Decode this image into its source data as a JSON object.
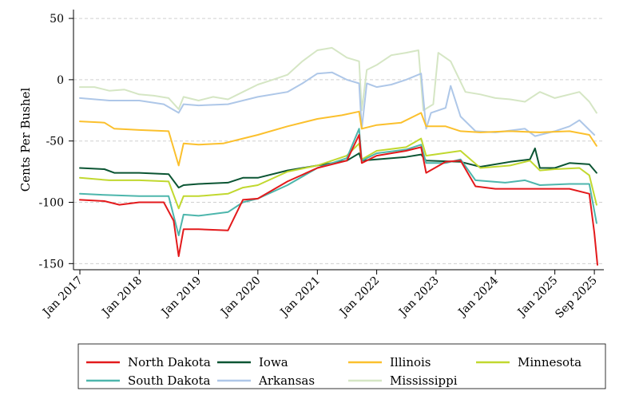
{
  "chart_data": {
    "type": "line",
    "title": "",
    "xlabel": "",
    "ylabel": "Cents Per Bushel",
    "ylim": [
      -155,
      52
    ],
    "xlim": [
      "2017-01-01",
      "2025-09-30"
    ],
    "yticks": [
      50,
      0,
      -50,
      -100,
      -150
    ],
    "ytick_labels": [
      "50",
      "0",
      "-50",
      "-100",
      "-150"
    ],
    "xticks": [
      "2017-01-01",
      "2018-01-01",
      "2019-01-01",
      "2020-01-01",
      "2021-01-01",
      "2022-01-01",
      "2023-01-01",
      "2024-01-01",
      "2025-01-01",
      "2025-09-01"
    ],
    "xtick_labels": [
      "Jan 2017",
      "Jan 2018",
      "Jan 2019",
      "Jan 2020",
      "Jan 2021",
      "Jan 2022",
      "Jan 2023",
      "Jan 2024",
      "Jan 2025",
      "Sep 2025"
    ],
    "grid": "horizontal dashed",
    "legend_position": "bottom",
    "series": [
      {
        "name": "Mississippi",
        "color": "#d5e6c4",
        "points": [
          [
            "2017-01-01",
            -6
          ],
          [
            "2017-04-01",
            -6
          ],
          [
            "2017-07-01",
            -9
          ],
          [
            "2017-10-01",
            -8
          ],
          [
            "2018-01-01",
            -12
          ],
          [
            "2018-04-01",
            -13
          ],
          [
            "2018-07-01",
            -15
          ],
          [
            "2018-09-01",
            -24
          ],
          [
            "2018-10-01",
            -14
          ],
          [
            "2019-01-01",
            -17
          ],
          [
            "2019-04-01",
            -14
          ],
          [
            "2019-07-01",
            -16
          ],
          [
            "2019-10-01",
            -10
          ],
          [
            "2020-01-01",
            -4
          ],
          [
            "2020-04-01",
            0
          ],
          [
            "2020-07-01",
            4
          ],
          [
            "2020-10-01",
            15
          ],
          [
            "2021-01-01",
            24
          ],
          [
            "2021-04-01",
            26
          ],
          [
            "2021-07-01",
            18
          ],
          [
            "2021-09-15",
            15
          ],
          [
            "2021-10-01",
            -25
          ],
          [
            "2021-11-01",
            8
          ],
          [
            "2022-01-01",
            12
          ],
          [
            "2022-04-01",
            20
          ],
          [
            "2022-07-01",
            22
          ],
          [
            "2022-09-15",
            24
          ],
          [
            "2022-10-15",
            -25
          ],
          [
            "2022-12-15",
            -20
          ],
          [
            "2023-01-15",
            22
          ],
          [
            "2023-04-01",
            15
          ],
          [
            "2023-07-01",
            -10
          ],
          [
            "2023-10-01",
            -12
          ],
          [
            "2024-01-01",
            -15
          ],
          [
            "2024-04-01",
            -16
          ],
          [
            "2024-07-01",
            -18
          ],
          [
            "2024-10-01",
            -10
          ],
          [
            "2025-01-01",
            -15
          ],
          [
            "2025-04-01",
            -12
          ],
          [
            "2025-06-01",
            -10
          ],
          [
            "2025-08-01",
            -18
          ],
          [
            "2025-09-15",
            -27
          ]
        ]
      },
      {
        "name": "Arkansas",
        "color": "#aec7e8",
        "points": [
          [
            "2017-01-01",
            -15
          ],
          [
            "2017-07-01",
            -17
          ],
          [
            "2018-01-01",
            -17
          ],
          [
            "2018-06-01",
            -20
          ],
          [
            "2018-09-01",
            -27
          ],
          [
            "2018-10-01",
            -20
          ],
          [
            "2019-01-01",
            -21
          ],
          [
            "2019-07-01",
            -20
          ],
          [
            "2020-01-01",
            -14
          ],
          [
            "2020-07-01",
            -10
          ],
          [
            "2020-10-01",
            -3
          ],
          [
            "2021-01-01",
            5
          ],
          [
            "2021-04-01",
            6
          ],
          [
            "2021-07-01",
            0
          ],
          [
            "2021-09-15",
            -3
          ],
          [
            "2021-10-01",
            -40
          ],
          [
            "2021-11-01",
            -3
          ],
          [
            "2022-01-01",
            -6
          ],
          [
            "2022-04-01",
            -4
          ],
          [
            "2022-07-01",
            0
          ],
          [
            "2022-10-01",
            5
          ],
          [
            "2022-11-01",
            -40
          ],
          [
            "2022-12-01",
            -27
          ],
          [
            "2023-03-01",
            -23
          ],
          [
            "2023-04-01",
            -5
          ],
          [
            "2023-06-01",
            -30
          ],
          [
            "2023-09-01",
            -42
          ],
          [
            "2024-01-01",
            -43
          ],
          [
            "2024-07-01",
            -40
          ],
          [
            "2024-09-01",
            -46
          ],
          [
            "2025-01-01",
            -42
          ],
          [
            "2025-04-01",
            -38
          ],
          [
            "2025-06-01",
            -33
          ],
          [
            "2025-09-01",
            -45
          ]
        ]
      },
      {
        "name": "Illinois",
        "color": "#fbc02d",
        "points": [
          [
            "2017-01-01",
            -34
          ],
          [
            "2017-06-01",
            -35
          ],
          [
            "2017-08-01",
            -40
          ],
          [
            "2018-01-01",
            -41
          ],
          [
            "2018-07-01",
            -42
          ],
          [
            "2018-09-01",
            -70
          ],
          [
            "2018-10-01",
            -52
          ],
          [
            "2019-01-01",
            -53
          ],
          [
            "2019-06-01",
            -52
          ],
          [
            "2019-10-01",
            -48
          ],
          [
            "2020-01-01",
            -45
          ],
          [
            "2020-07-01",
            -38
          ],
          [
            "2021-01-01",
            -32
          ],
          [
            "2021-06-01",
            -29
          ],
          [
            "2021-09-15",
            -26
          ],
          [
            "2021-10-01",
            -40
          ],
          [
            "2022-01-01",
            -37
          ],
          [
            "2022-06-01",
            -35
          ],
          [
            "2022-10-01",
            -27
          ],
          [
            "2022-11-01",
            -38
          ],
          [
            "2023-03-01",
            -38
          ],
          [
            "2023-06-01",
            -42
          ],
          [
            "2023-10-01",
            -43
          ],
          [
            "2024-04-01",
            -42
          ],
          [
            "2024-10-01",
            -43
          ],
          [
            "2025-04-01",
            -42
          ],
          [
            "2025-08-01",
            -45
          ],
          [
            "2025-09-15",
            -54
          ]
        ]
      },
      {
        "name": "Iowa",
        "color": "#0b5533",
        "points": [
          [
            "2017-01-01",
            -72
          ],
          [
            "2017-06-01",
            -73
          ],
          [
            "2017-08-01",
            -76
          ],
          [
            "2018-01-01",
            -76
          ],
          [
            "2018-07-01",
            -77
          ],
          [
            "2018-09-01",
            -88
          ],
          [
            "2018-10-01",
            -86
          ],
          [
            "2019-01-01",
            -85
          ],
          [
            "2019-07-01",
            -84
          ],
          [
            "2019-10-01",
            -80
          ],
          [
            "2020-01-01",
            -80
          ],
          [
            "2020-07-01",
            -74
          ],
          [
            "2021-01-01",
            -70
          ],
          [
            "2021-07-01",
            -66
          ],
          [
            "2021-09-15",
            -60
          ],
          [
            "2021-10-01",
            -66
          ],
          [
            "2022-01-01",
            -65
          ],
          [
            "2022-07-01",
            -63
          ],
          [
            "2022-10-01",
            -61
          ],
          [
            "2022-11-01",
            -66
          ],
          [
            "2023-06-01",
            -67
          ],
          [
            "2023-10-01",
            -71
          ],
          [
            "2024-04-01",
            -67
          ],
          [
            "2024-08-01",
            -65
          ],
          [
            "2024-09-01",
            -56
          ],
          [
            "2024-10-01",
            -72
          ],
          [
            "2025-01-01",
            -72
          ],
          [
            "2025-04-01",
            -68
          ],
          [
            "2025-08-01",
            -69
          ],
          [
            "2025-09-15",
            -76
          ]
        ]
      },
      {
        "name": "Minnesota",
        "color": "#c1d82f",
        "points": [
          [
            "2017-01-01",
            -80
          ],
          [
            "2017-07-01",
            -82
          ],
          [
            "2018-01-01",
            -82
          ],
          [
            "2018-07-01",
            -83
          ],
          [
            "2018-09-01",
            -105
          ],
          [
            "2018-10-01",
            -95
          ],
          [
            "2019-01-01",
            -95
          ],
          [
            "2019-07-01",
            -93
          ],
          [
            "2019-10-01",
            -88
          ],
          [
            "2020-01-01",
            -86
          ],
          [
            "2020-07-01",
            -75
          ],
          [
            "2021-01-01",
            -70
          ],
          [
            "2021-07-01",
            -62
          ],
          [
            "2021-09-15",
            -52
          ],
          [
            "2021-10-01",
            -65
          ],
          [
            "2022-01-01",
            -58
          ],
          [
            "2022-07-01",
            -55
          ],
          [
            "2022-10-01",
            -48
          ],
          [
            "2022-11-01",
            -62
          ],
          [
            "2023-06-01",
            -58
          ],
          [
            "2023-10-01",
            -72
          ],
          [
            "2024-04-01",
            -70
          ],
          [
            "2024-08-01",
            -66
          ],
          [
            "2024-10-01",
            -74
          ],
          [
            "2025-01-01",
            -73
          ],
          [
            "2025-06-01",
            -72
          ],
          [
            "2025-08-01",
            -78
          ],
          [
            "2025-09-15",
            -102
          ]
        ]
      },
      {
        "name": "South Dakota",
        "color": "#4db6ac",
        "points": [
          [
            "2017-01-01",
            -93
          ],
          [
            "2017-06-01",
            -94
          ],
          [
            "2018-01-01",
            -95
          ],
          [
            "2018-07-01",
            -95
          ],
          [
            "2018-09-01",
            -127
          ],
          [
            "2018-10-01",
            -110
          ],
          [
            "2019-01-01",
            -111
          ],
          [
            "2019-07-01",
            -108
          ],
          [
            "2019-10-01",
            -100
          ],
          [
            "2020-01-01",
            -97
          ],
          [
            "2020-07-01",
            -86
          ],
          [
            "2021-01-01",
            -72
          ],
          [
            "2021-07-01",
            -64
          ],
          [
            "2021-09-15",
            -40
          ],
          [
            "2021-10-01",
            -66
          ],
          [
            "2022-01-01",
            -60
          ],
          [
            "2022-07-01",
            -57
          ],
          [
            "2022-10-01",
            -53
          ],
          [
            "2022-11-01",
            -68
          ],
          [
            "2023-03-01",
            -68
          ],
          [
            "2023-06-01",
            -65
          ],
          [
            "2023-09-01",
            -82
          ],
          [
            "2024-03-01",
            -84
          ],
          [
            "2024-07-01",
            -82
          ],
          [
            "2024-10-01",
            -86
          ],
          [
            "2025-04-01",
            -85
          ],
          [
            "2025-08-01",
            -85
          ],
          [
            "2025-09-15",
            -117
          ]
        ]
      },
      {
        "name": "North Dakota",
        "color": "#e31a1c",
        "points": [
          [
            "2017-01-01",
            -98
          ],
          [
            "2017-06-01",
            -99
          ],
          [
            "2017-09-01",
            -102
          ],
          [
            "2018-01-01",
            -100
          ],
          [
            "2018-06-01",
            -100
          ],
          [
            "2018-08-01",
            -115
          ],
          [
            "2018-09-01",
            -144
          ],
          [
            "2018-10-01",
            -122
          ],
          [
            "2019-01-01",
            -122
          ],
          [
            "2019-07-01",
            -123
          ],
          [
            "2019-10-01",
            -98
          ],
          [
            "2020-01-01",
            -97
          ],
          [
            "2020-07-01",
            -83
          ],
          [
            "2021-01-01",
            -72
          ],
          [
            "2021-07-01",
            -66
          ],
          [
            "2021-09-15",
            -45
          ],
          [
            "2021-10-01",
            -68
          ],
          [
            "2022-01-01",
            -62
          ],
          [
            "2022-07-01",
            -58
          ],
          [
            "2022-10-01",
            -55
          ],
          [
            "2022-11-01",
            -76
          ],
          [
            "2023-03-01",
            -67
          ],
          [
            "2023-06-01",
            -66
          ],
          [
            "2023-09-01",
            -87
          ],
          [
            "2024-01-01",
            -89
          ],
          [
            "2024-06-01",
            -89
          ],
          [
            "2024-10-01",
            -89
          ],
          [
            "2025-04-01",
            -89
          ],
          [
            "2025-08-01",
            -93
          ],
          [
            "2025-09-01",
            -125
          ],
          [
            "2025-09-20",
            -151
          ]
        ]
      }
    ],
    "legend": {
      "entries": [
        {
          "name": "North Dakota",
          "color": "#e31a1c"
        },
        {
          "name": "Iowa",
          "color": "#0b5533"
        },
        {
          "name": "Illinois",
          "color": "#fbc02d"
        },
        {
          "name": "Minnesota",
          "color": "#c1d82f"
        },
        {
          "name": "South Dakota",
          "color": "#4db6ac"
        },
        {
          "name": "Arkansas",
          "color": "#aec7e8"
        },
        {
          "name": "Mississippi",
          "color": "#d5e6c4"
        }
      ]
    }
  }
}
